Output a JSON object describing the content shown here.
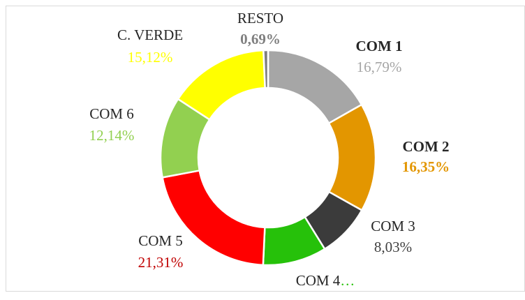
{
  "chart_data": {
    "type": "donut",
    "categories": [
      "COM 1",
      "COM 2",
      "COM 3",
      "COM 4",
      "COM 5",
      "COM 6",
      "C. VERDE",
      "RESTO"
    ],
    "values": [
      16.79,
      16.35,
      8.03,
      9.57,
      21.31,
      12.14,
      15.12,
      0.69
    ],
    "value_labels": [
      "16,79%",
      "16,35%",
      "8,03%",
      "…",
      "21,31%",
      "12,14%",
      "15,12%",
      "0,69%"
    ],
    "colors": [
      "#a6a6a6",
      "#e39600",
      "#3b3b3b",
      "#26c10a",
      "#ff0000",
      "#92d050",
      "#ffff00",
      "#7f7f7f"
    ]
  }
}
